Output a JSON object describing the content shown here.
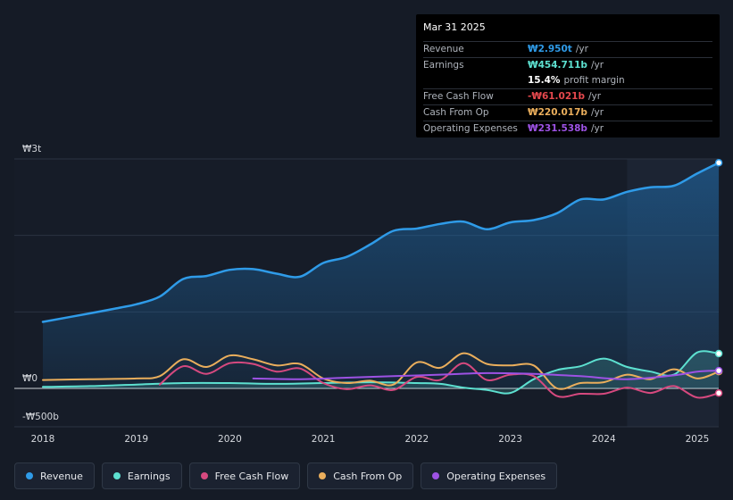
{
  "chart_data": {
    "type": "line",
    "title": "",
    "xlabel": "",
    "ylabel": "",
    "ylim": [
      -500,
      3000
    ],
    "y_tick_labels": [
      {
        "value": 3000,
        "label": "₩3t"
      },
      {
        "value": 0,
        "label": "₩0"
      },
      {
        "value": -500,
        "label": "-₩500b"
      }
    ],
    "x_ticks": [
      {
        "value": 2018,
        "label": "2018"
      },
      {
        "value": 2019,
        "label": "2019"
      },
      {
        "value": 2020,
        "label": "2020"
      },
      {
        "value": 2021,
        "label": "2021"
      },
      {
        "value": 2022,
        "label": "2022"
      },
      {
        "value": 2023,
        "label": "2023"
      },
      {
        "value": 2024,
        "label": "2024"
      },
      {
        "value": 2025,
        "label": "2025"
      }
    ],
    "xlim": [
      2017.7,
      2025.23
    ],
    "highlight_start": 2024.25,
    "series": [
      {
        "name": "Revenue",
        "color": "#2f9be8",
        "fill": true,
        "points": [
          [
            2018.0,
            870
          ],
          [
            2018.5,
            980
          ],
          [
            2018.8,
            1050
          ],
          [
            2019.0,
            1100
          ],
          [
            2019.25,
            1200
          ],
          [
            2019.5,
            1430
          ],
          [
            2019.75,
            1470
          ],
          [
            2020.0,
            1550
          ],
          [
            2020.25,
            1560
          ],
          [
            2020.5,
            1500
          ],
          [
            2020.75,
            1460
          ],
          [
            2021.0,
            1640
          ],
          [
            2021.25,
            1720
          ],
          [
            2021.5,
            1880
          ],
          [
            2021.75,
            2060
          ],
          [
            2022.0,
            2090
          ],
          [
            2022.25,
            2150
          ],
          [
            2022.5,
            2180
          ],
          [
            2022.75,
            2080
          ],
          [
            2023.0,
            2170
          ],
          [
            2023.25,
            2200
          ],
          [
            2023.5,
            2290
          ],
          [
            2023.75,
            2470
          ],
          [
            2024.0,
            2470
          ],
          [
            2024.25,
            2570
          ],
          [
            2024.5,
            2630
          ],
          [
            2024.75,
            2650
          ],
          [
            2025.0,
            2810
          ],
          [
            2025.23,
            2950
          ]
        ]
      },
      {
        "name": "Earnings",
        "color": "#5de0d0",
        "fill": true,
        "points": [
          [
            2018.0,
            20
          ],
          [
            2018.5,
            30
          ],
          [
            2019.0,
            50
          ],
          [
            2019.5,
            70
          ],
          [
            2020.0,
            70
          ],
          [
            2020.5,
            60
          ],
          [
            2021.0,
            70
          ],
          [
            2021.5,
            80
          ],
          [
            2022.0,
            70
          ],
          [
            2022.25,
            60
          ],
          [
            2022.5,
            10
          ],
          [
            2022.75,
            -20
          ],
          [
            2023.0,
            -60
          ],
          [
            2023.25,
            120
          ],
          [
            2023.5,
            240
          ],
          [
            2023.75,
            290
          ],
          [
            2024.0,
            390
          ],
          [
            2024.25,
            280
          ],
          [
            2024.5,
            220
          ],
          [
            2024.75,
            180
          ],
          [
            2025.0,
            470
          ],
          [
            2025.23,
            455
          ]
        ]
      },
      {
        "name": "Free Cash Flow",
        "color": "#d6497f",
        "fill": false,
        "points": [
          [
            2019.25,
            50
          ],
          [
            2019.5,
            290
          ],
          [
            2019.75,
            190
          ],
          [
            2020.0,
            330
          ],
          [
            2020.25,
            320
          ],
          [
            2020.5,
            220
          ],
          [
            2020.75,
            260
          ],
          [
            2021.0,
            70
          ],
          [
            2021.25,
            -10
          ],
          [
            2021.5,
            40
          ],
          [
            2021.75,
            -20
          ],
          [
            2022.0,
            150
          ],
          [
            2022.25,
            110
          ],
          [
            2022.5,
            330
          ],
          [
            2022.75,
            110
          ],
          [
            2023.0,
            180
          ],
          [
            2023.25,
            160
          ],
          [
            2023.5,
            -100
          ],
          [
            2023.75,
            -70
          ],
          [
            2024.0,
            -70
          ],
          [
            2024.25,
            10
          ],
          [
            2024.5,
            -60
          ],
          [
            2024.75,
            30
          ],
          [
            2025.0,
            -120
          ],
          [
            2025.23,
            -61
          ]
        ]
      },
      {
        "name": "Cash From Op",
        "color": "#eaae5c",
        "fill": false,
        "points": [
          [
            2018.0,
            110
          ],
          [
            2018.5,
            120
          ],
          [
            2019.0,
            130
          ],
          [
            2019.25,
            160
          ],
          [
            2019.5,
            380
          ],
          [
            2019.75,
            280
          ],
          [
            2020.0,
            430
          ],
          [
            2020.25,
            380
          ],
          [
            2020.5,
            300
          ],
          [
            2020.75,
            320
          ],
          [
            2021.0,
            130
          ],
          [
            2021.25,
            70
          ],
          [
            2021.5,
            100
          ],
          [
            2021.75,
            50
          ],
          [
            2022.0,
            340
          ],
          [
            2022.25,
            270
          ],
          [
            2022.5,
            460
          ],
          [
            2022.75,
            320
          ],
          [
            2023.0,
            300
          ],
          [
            2023.25,
            300
          ],
          [
            2023.5,
            0
          ],
          [
            2023.75,
            70
          ],
          [
            2024.0,
            80
          ],
          [
            2024.25,
            180
          ],
          [
            2024.5,
            120
          ],
          [
            2024.75,
            250
          ],
          [
            2025.0,
            130
          ],
          [
            2025.23,
            220
          ]
        ]
      },
      {
        "name": "Operating Expenses",
        "color": "#9d52e4",
        "fill": false,
        "points": [
          [
            2020.25,
            130
          ],
          [
            2020.75,
            120
          ],
          [
            2021.25,
            140
          ],
          [
            2021.75,
            160
          ],
          [
            2022.25,
            180
          ],
          [
            2022.75,
            200
          ],
          [
            2023.25,
            190
          ],
          [
            2023.75,
            160
          ],
          [
            2024.25,
            120
          ],
          [
            2024.75,
            170
          ],
          [
            2025.0,
            220
          ],
          [
            2025.23,
            232
          ]
        ]
      }
    ]
  },
  "tooltip": {
    "date": "Mar 31 2025",
    "rows": [
      {
        "label": "Revenue",
        "value": "₩2.950t",
        "unit": "/yr",
        "color": "#2f9be8"
      },
      {
        "label": "Earnings",
        "value": "₩454.711b",
        "unit": "/yr",
        "color": "#5de0d0"
      },
      {
        "label": "",
        "value": "15.4%",
        "unit": "profit margin",
        "color": "#ffffff"
      },
      {
        "label": "Free Cash Flow",
        "value": "-₩61.021b",
        "unit": "/yr",
        "color": "#e5484d"
      },
      {
        "label": "Cash From Op",
        "value": "₩220.017b",
        "unit": "/yr",
        "color": "#eaae5c"
      },
      {
        "label": "Operating Expenses",
        "value": "₩231.538b",
        "unit": "/yr",
        "color": "#9d52e4"
      }
    ]
  },
  "legend": [
    {
      "label": "Revenue",
      "color": "#2f9be8"
    },
    {
      "label": "Earnings",
      "color": "#5de0d0"
    },
    {
      "label": "Free Cash Flow",
      "color": "#d6497f"
    },
    {
      "label": "Cash From Op",
      "color": "#eaae5c"
    },
    {
      "label": "Operating Expenses",
      "color": "#9d52e4"
    }
  ]
}
